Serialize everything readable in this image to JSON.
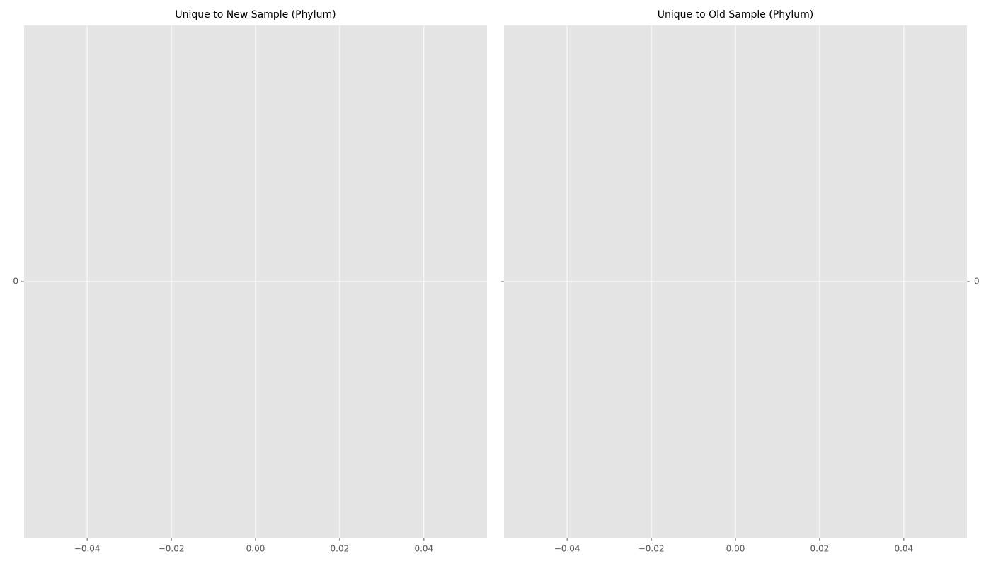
{
  "chart_data": [
    {
      "type": "bar",
      "title": "Unique to New Sample (Phylum)",
      "xlim": [
        -0.055,
        0.055
      ],
      "xticks": [
        {
          "value": -0.04,
          "label": "−0.04"
        },
        {
          "value": -0.02,
          "label": "−0.02"
        },
        {
          "value": 0,
          "label": "0.00"
        },
        {
          "value": 0.02,
          "label": "0.02"
        },
        {
          "value": 0.04,
          "label": "0.04"
        }
      ],
      "ylim": [
        -0.055,
        0.055
      ],
      "yticks": [
        0
      ],
      "yaxis_side": "left",
      "grid": true
    },
    {
      "type": "bar",
      "title": "Unique to Old Sample (Phylum)",
      "xlim": [
        -0.055,
        0.055
      ],
      "xticks": [
        {
          "value": -0.04,
          "label": "−0.04"
        },
        {
          "value": -0.02,
          "label": "−0.02"
        },
        {
          "value": 0,
          "label": "0.00"
        },
        {
          "value": 0.02,
          "label": "0.02"
        },
        {
          "value": 0.04,
          "label": "0.04"
        }
      ],
      "ylim": [
        -0.055,
        0.055
      ],
      "yticks": [
        0
      ],
      "yaxis_side": "right",
      "grid": true
    }
  ]
}
